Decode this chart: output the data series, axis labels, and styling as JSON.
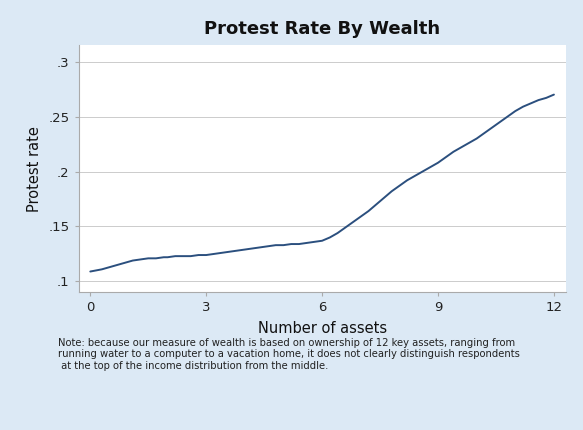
{
  "title": "Protest Rate By Wealth",
  "xlabel": "Number of assets",
  "ylabel": "Protest rate",
  "background_color": "#dce9f5",
  "plot_bg_color": "#ffffff",
  "line_color": "#2b4f7e",
  "line_width": 1.4,
  "xlim": [
    -0.3,
    12.3
  ],
  "ylim": [
    0.09,
    0.315
  ],
  "xticks": [
    0,
    3,
    6,
    9,
    12
  ],
  "yticks": [
    0.1,
    0.15,
    0.2,
    0.25,
    0.3
  ],
  "ytick_labels": [
    ".1",
    ".15",
    ".2",
    ".25",
    ".3"
  ],
  "note": "Note: because our measure of wealth is based on ownership of 12 key assets, ranging from\nrunning water to a computer to a vacation home, it does not clearly distinguish respondents\n at the top of the income distribution from the middle.",
  "x": [
    0.0,
    0.15,
    0.3,
    0.5,
    0.7,
    0.9,
    1.1,
    1.3,
    1.5,
    1.7,
    1.9,
    2.0,
    2.2,
    2.4,
    2.6,
    2.8,
    3.0,
    3.2,
    3.4,
    3.6,
    3.8,
    4.0,
    4.2,
    4.4,
    4.6,
    4.8,
    5.0,
    5.2,
    5.4,
    5.6,
    5.8,
    6.0,
    6.2,
    6.4,
    6.6,
    6.8,
    7.0,
    7.2,
    7.4,
    7.6,
    7.8,
    8.0,
    8.2,
    8.4,
    8.6,
    8.8,
    9.0,
    9.2,
    9.4,
    9.6,
    9.8,
    10.0,
    10.2,
    10.4,
    10.6,
    10.8,
    11.0,
    11.2,
    11.4,
    11.6,
    11.8,
    12.0
  ],
  "y": [
    0.109,
    0.11,
    0.111,
    0.113,
    0.115,
    0.117,
    0.119,
    0.12,
    0.121,
    0.121,
    0.122,
    0.122,
    0.123,
    0.123,
    0.123,
    0.124,
    0.124,
    0.125,
    0.126,
    0.127,
    0.128,
    0.129,
    0.13,
    0.131,
    0.132,
    0.133,
    0.133,
    0.134,
    0.134,
    0.135,
    0.136,
    0.137,
    0.14,
    0.144,
    0.149,
    0.154,
    0.159,
    0.164,
    0.17,
    0.176,
    0.182,
    0.187,
    0.192,
    0.196,
    0.2,
    0.204,
    0.208,
    0.213,
    0.218,
    0.222,
    0.226,
    0.23,
    0.235,
    0.24,
    0.245,
    0.25,
    0.255,
    0.259,
    0.262,
    0.265,
    0.267,
    0.27
  ]
}
